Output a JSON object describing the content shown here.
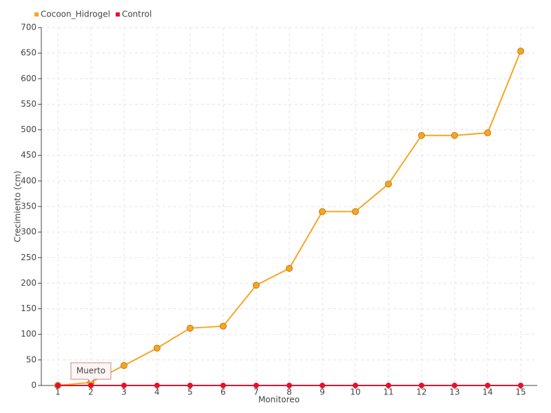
{
  "chart_data": {
    "type": "line",
    "x_label": "Monitoreo",
    "y_label": "Crecimiento (cm)",
    "categories": [
      "1",
      "2",
      "3",
      "4",
      "5",
      "6",
      "7",
      "8",
      "9",
      "10",
      "11",
      "12",
      "13",
      "14",
      "15"
    ],
    "series": [
      {
        "name": "Cocoon_Hidrogel",
        "color": "#f5a623",
        "values": [
          0,
          6,
          39,
          73,
          112,
          116,
          196,
          229,
          340,
          340,
          394,
          489,
          489,
          494,
          654
        ]
      },
      {
        "name": "Control",
        "color": "#e8102a",
        "values": [
          0,
          0,
          0,
          0,
          0,
          0,
          0,
          0,
          0,
          0,
          0,
          0,
          0,
          0,
          0
        ]
      }
    ],
    "annotation": "Muerto",
    "ylim": [
      0,
      700
    ],
    "yticks": [
      0,
      50,
      100,
      150,
      200,
      250,
      300,
      350,
      400,
      450,
      500,
      550,
      600,
      650,
      700
    ],
    "grid": true
  }
}
